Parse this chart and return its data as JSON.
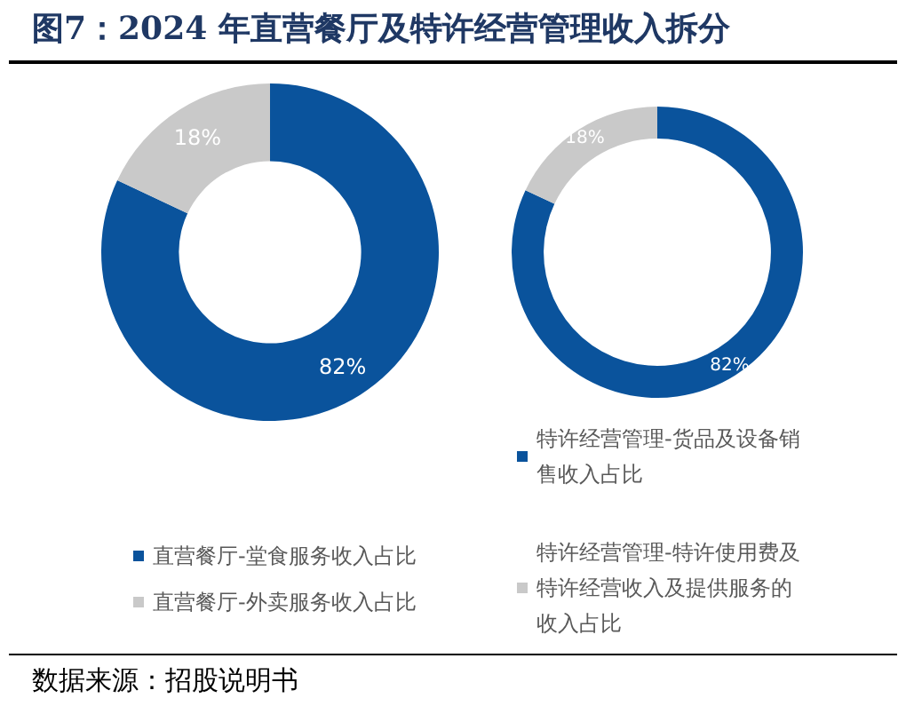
{
  "chart_data": [
    {
      "type": "donut",
      "title": "图7：2024 年直营餐厅及特许经营管理收入拆分",
      "annotations": [
        "数据来源：招股说明书"
      ],
      "categories": [
        "直营餐厅-堂食服务收入占比",
        "直营餐厅-外卖服务收入占比"
      ],
      "values": [
        82,
        18
      ],
      "colors": [
        "#0a539c",
        "#c9c9c9"
      ],
      "value_labels": [
        "82%",
        "18%"
      ],
      "legend": "bottom"
    },
    {
      "type": "donut",
      "categories": [
        "特许经营管理-货品及设备销售收入占比",
        "特许经营管理-特许使用费及特许经营收入及提供服务的收入占比"
      ],
      "values": [
        82,
        18
      ],
      "colors": [
        "#0a539c",
        "#c9c9c9"
      ],
      "value_labels": [
        "82%",
        "18%"
      ],
      "legend": "bottom"
    }
  ]
}
